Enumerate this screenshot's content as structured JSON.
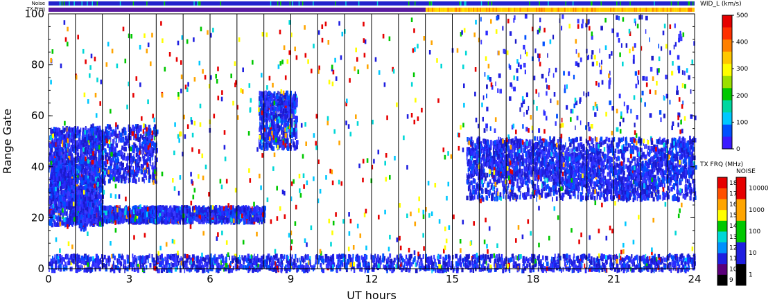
{
  "chart_data": {
    "type": "heatmap",
    "xlabel": "UT hours",
    "ylabel": "Range Gate",
    "xlim": [
      0,
      24
    ],
    "ylim": [
      0,
      100
    ],
    "xticks": [
      "0",
      "3",
      "6",
      "9",
      "12",
      "15",
      "18",
      "21",
      "24"
    ],
    "yticks": [
      "0",
      "20",
      "40",
      "60",
      "80",
      "100"
    ],
    "hour_grid": true,
    "status_bars": {
      "noise_label": "Noise",
      "txfreq_label": "TX Freq",
      "txfreq_switch_hour": 14
    },
    "colorbars": {
      "width": {
        "label": "WID_L (km/s)",
        "ticks": [
          "0",
          "100",
          "200",
          "300",
          "400",
          "500"
        ],
        "range": [
          0,
          500
        ]
      },
      "tx_freq": {
        "label": "TX FRQ (MHz)",
        "ticks": [
          "9",
          "10",
          "11",
          "12",
          "13",
          "14",
          "15",
          "16",
          "17",
          "18"
        ],
        "colors": [
          "#000000",
          "#5a007a",
          "#1f1fe0",
          "#0090ff",
          "#00d7d7",
          "#00c800",
          "#ffff00",
          "#ffa500",
          "#ff5000",
          "#e60000"
        ]
      },
      "noise": {
        "label": "NOISE",
        "ticks": [
          "1",
          "10",
          "100",
          "1000",
          "10000"
        ],
        "colors": [
          "#000000",
          "#1f1fe0",
          "#00c800",
          "#ffa500",
          "#e60000"
        ]
      }
    },
    "regions": [
      {
        "name": "near-range band",
        "x": [
          0,
          24
        ],
        "y": [
          0,
          6
        ],
        "density": "high"
      },
      {
        "name": "early arc",
        "x": [
          0,
          2
        ],
        "y": [
          18,
          56
        ],
        "density": "high"
      },
      {
        "name": "gate-22 band",
        "x": [
          0.8,
          8
        ],
        "y": [
          19,
          25
        ],
        "density": "high"
      },
      {
        "name": "rising echo 2-4 UT",
        "x": [
          1.5,
          4
        ],
        "y": [
          35,
          57
        ],
        "density": "medium"
      },
      {
        "name": "rising echo 8-9.2 UT",
        "x": [
          7.8,
          9.2
        ],
        "y": [
          48,
          70
        ],
        "density": "medium"
      },
      {
        "name": "post-15 UT echo",
        "x": [
          15.5,
          24
        ],
        "y": [
          28,
          52
        ],
        "density": "high"
      },
      {
        "name": "evening patches",
        "x": [
          16,
          24
        ],
        "y": [
          55,
          100
        ],
        "density": "low"
      }
    ]
  }
}
